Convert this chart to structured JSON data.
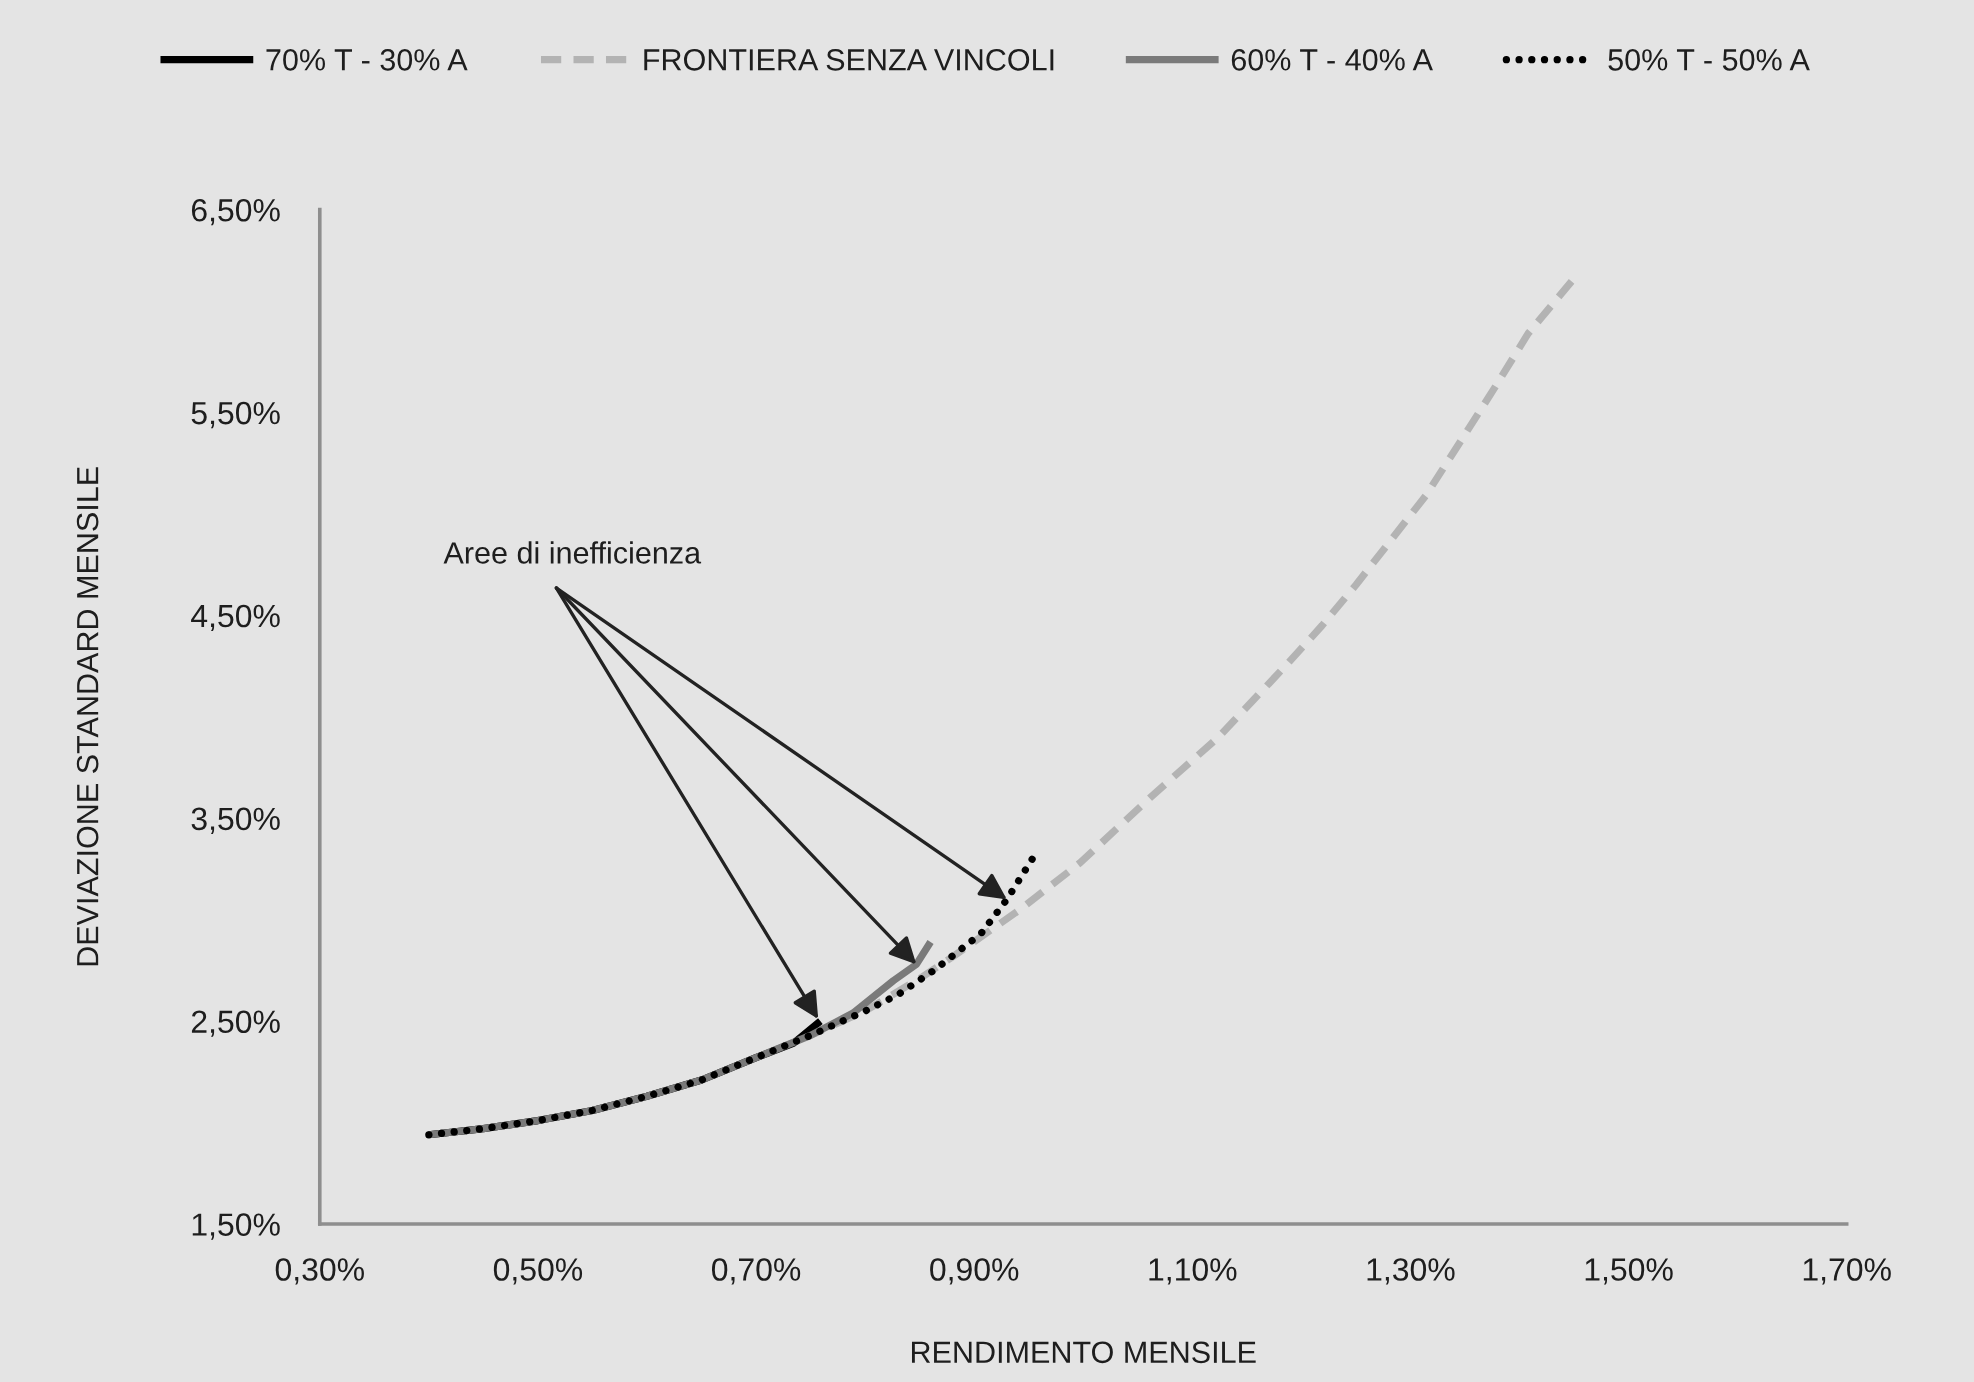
{
  "chart_data": {
    "type": "line",
    "xlabel": "RENDIMENTO MENSILE",
    "ylabel": "DEVIAZIONE STANDARD MENSILE",
    "xlim": [
      0.3,
      1.7
    ],
    "xticks": [
      {
        "value": 0.3,
        "label": "0,30%"
      },
      {
        "value": 0.5,
        "label": "0,50%"
      },
      {
        "value": 0.7,
        "label": "0,70%"
      },
      {
        "value": 0.9,
        "label": "0,90%"
      },
      {
        "value": 1.1,
        "label": "1,10%"
      },
      {
        "value": 1.3,
        "label": "1,30%"
      },
      {
        "value": 1.5,
        "label": "1,50%"
      },
      {
        "value": 1.7,
        "label": "1,70%"
      }
    ],
    "ylim": [
      1.5,
      6.5
    ],
    "yticks": [
      {
        "value": 1.5,
        "label": "1,50%"
      },
      {
        "value": 2.5,
        "label": "2,50%"
      },
      {
        "value": 3.5,
        "label": "3,50%"
      },
      {
        "value": 4.5,
        "label": "4,50%"
      },
      {
        "value": 5.5,
        "label": "5,50%"
      },
      {
        "value": 6.5,
        "label": "6,50%"
      }
    ],
    "grid": false,
    "legend": "top",
    "annotations": [
      {
        "text": "Aree di inefficienza",
        "x": 0.757,
        "y": 2.51
      }
    ],
    "series": [
      {
        "name": "70% T - 30% A",
        "color": "#000000",
        "line_style": "solid",
        "x": [
          0.4,
          0.45,
          0.5,
          0.55,
          0.6,
          0.65,
          0.7,
          0.734,
          0.759
        ],
        "values": [
          1.94,
          1.97,
          2.01,
          2.06,
          2.13,
          2.21,
          2.32,
          2.39,
          2.5
        ]
      },
      {
        "name": "FRONTIERA SENZA VINCOLI",
        "color": "#b3b3b3",
        "line_style": "dashed",
        "x": [
          0.4,
          0.45,
          0.5,
          0.55,
          0.6,
          0.65,
          0.7,
          0.75,
          0.8,
          0.85,
          0.881,
          0.942,
          0.997,
          1.061,
          1.124,
          1.187,
          1.219,
          1.25,
          1.282,
          1.314,
          1.345,
          1.377,
          1.408,
          1.453
        ],
        "values": [
          1.94,
          1.97,
          2.01,
          2.06,
          2.13,
          2.21,
          2.32,
          2.43,
          2.55,
          2.71,
          2.82,
          3.05,
          3.28,
          3.6,
          3.9,
          4.26,
          4.45,
          4.65,
          4.87,
          5.09,
          5.35,
          5.62,
          5.89,
          6.18
        ]
      },
      {
        "name": "60% T - 40% A",
        "color": "#7a7a7a",
        "line_style": "solid",
        "x": [
          0.4,
          0.45,
          0.5,
          0.55,
          0.6,
          0.65,
          0.7,
          0.75,
          0.789,
          0.826,
          0.847,
          0.86
        ],
        "values": [
          1.94,
          1.97,
          2.01,
          2.06,
          2.13,
          2.21,
          2.32,
          2.43,
          2.54,
          2.7,
          2.78,
          2.89
        ]
      },
      {
        "name": "50% T - 50% A",
        "color": "#000000",
        "line_style": "dotted",
        "x": [
          0.4,
          0.45,
          0.5,
          0.55,
          0.6,
          0.65,
          0.7,
          0.75,
          0.8,
          0.83,
          0.863,
          0.906,
          0.93,
          0.958
        ],
        "values": [
          1.94,
          1.97,
          2.01,
          2.06,
          2.13,
          2.21,
          2.32,
          2.43,
          2.55,
          2.63,
          2.75,
          2.93,
          3.1,
          3.34
        ]
      }
    ]
  }
}
